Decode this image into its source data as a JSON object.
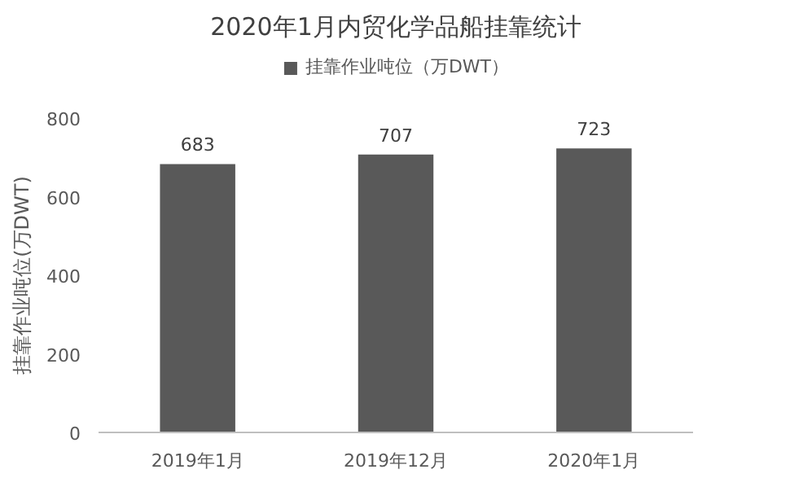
{
  "chart_data": {
    "type": "bar",
    "title": "2020年1月内贸化学品船挂靠统计",
    "ylabel": "挂靠作业吨位(万DWT)",
    "categories": [
      "2019年1月",
      "2019年12月",
      "2020年1月"
    ],
    "series": [
      {
        "name": "挂靠作业吨位（万DWT）",
        "color": "#595959",
        "values": [
          683,
          707,
          723
        ]
      }
    ],
    "ylim": [
      0,
      800
    ],
    "yticks": [
      0,
      200,
      400,
      600,
      800
    ],
    "data_labels": true,
    "grid": false,
    "legend": "top"
  }
}
